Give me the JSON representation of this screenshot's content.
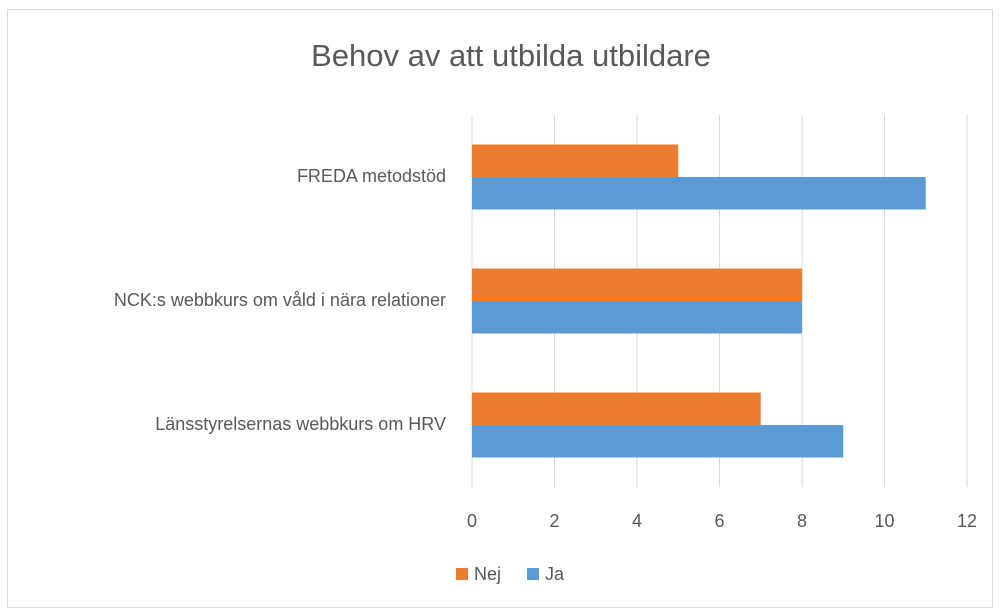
{
  "chart_data": {
    "type": "bar",
    "orientation": "horizontal",
    "title": "Behov av att utbilda utbildare",
    "categories": [
      "FREDA metodstöd",
      "NCK:s webbkurs om våld i nära relationer",
      "Länsstyrelsernas webbkurs om HRV"
    ],
    "series": [
      {
        "name": "Nej",
        "color": "#ed7d31",
        "values": [
          5,
          8,
          7
        ]
      },
      {
        "name": "Ja",
        "color": "#5b9bd5",
        "values": [
          11,
          8,
          9
        ]
      }
    ],
    "xlim": [
      0,
      12
    ],
    "xticks": [
      0,
      2,
      4,
      6,
      8,
      10,
      12
    ],
    "grid": true,
    "legend": "bottom"
  }
}
